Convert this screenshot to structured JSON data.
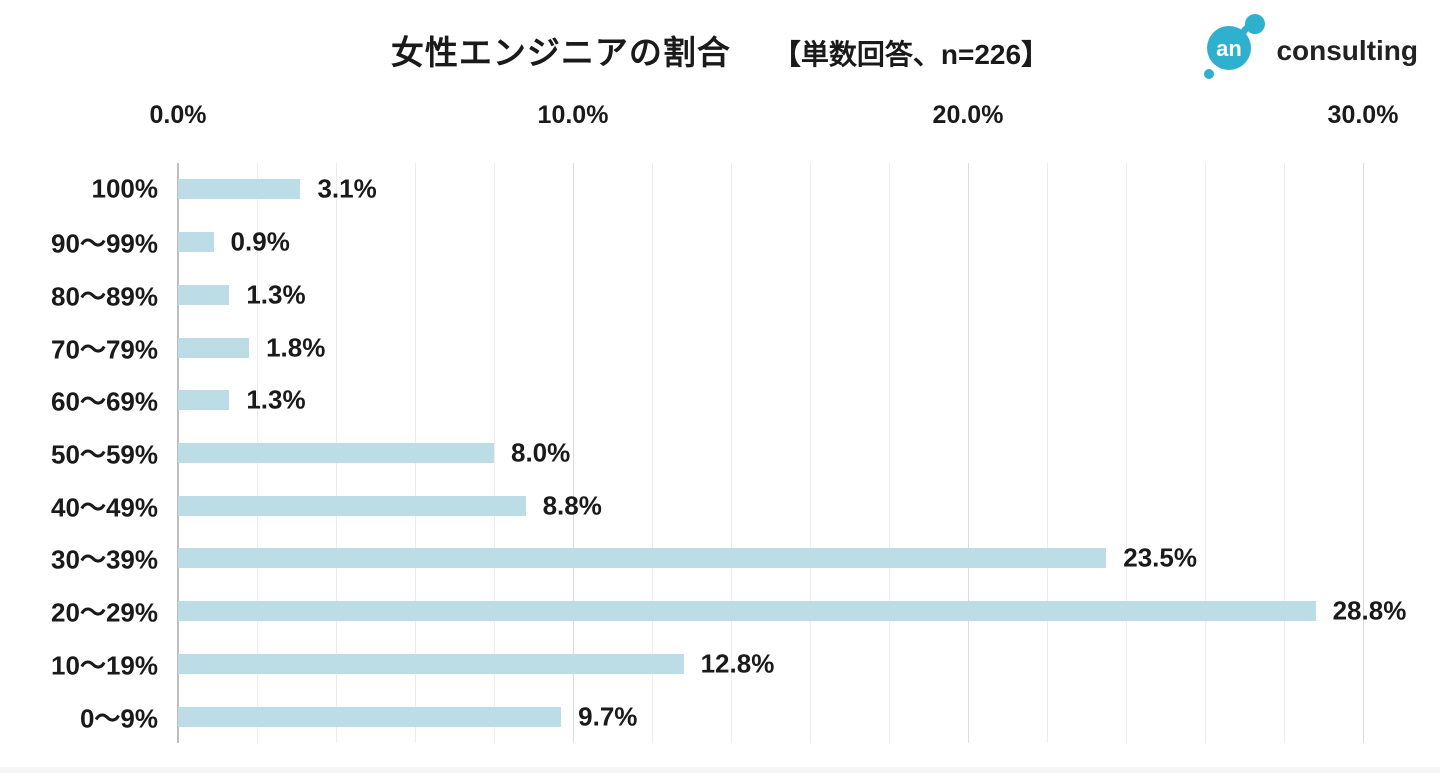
{
  "title": {
    "main": "女性エンジニアの割合",
    "note": "【単数回答、n=226】"
  },
  "logo": {
    "mark_text": "an",
    "text": "consulting",
    "mark_color": "#2fb0ce",
    "text_color": "#222222"
  },
  "chart_data": {
    "type": "bar",
    "orientation": "horizontal",
    "title": "女性エンジニアの割合",
    "subtitle": "【単数回答、n=226】",
    "sample_note": "単数回答、n=226",
    "categories": [
      "100%",
      "90〜99%",
      "80〜89%",
      "70〜79%",
      "60〜69%",
      "50〜59%",
      "40〜49%",
      "30〜39%",
      "20〜29%",
      "10〜19%",
      "0〜9%"
    ],
    "values": [
      3.1,
      0.9,
      1.3,
      1.8,
      1.3,
      8.0,
      8.8,
      23.5,
      28.8,
      12.8,
      9.7
    ],
    "value_labels": [
      "3.1%",
      "0.9%",
      "1.3%",
      "1.8%",
      "1.3%",
      "8.0%",
      "8.8%",
      "23.5%",
      "28.8%",
      "12.8%",
      "9.7%"
    ],
    "x_axis": {
      "ticks": [
        {
          "label": "0.0%",
          "value": 0
        },
        {
          "label": "10.0%",
          "value": 10
        },
        {
          "label": "20.0%",
          "value": 20
        },
        {
          "label": "30.0%",
          "value": 30
        }
      ],
      "lim": [
        0,
        30
      ],
      "minor_grid_step_pct": 2,
      "major_grid_step_pct": 10
    },
    "bar_color": "#bcdde6",
    "grid": "on",
    "legend": "none",
    "xlabel": "",
    "ylabel": ""
  }
}
